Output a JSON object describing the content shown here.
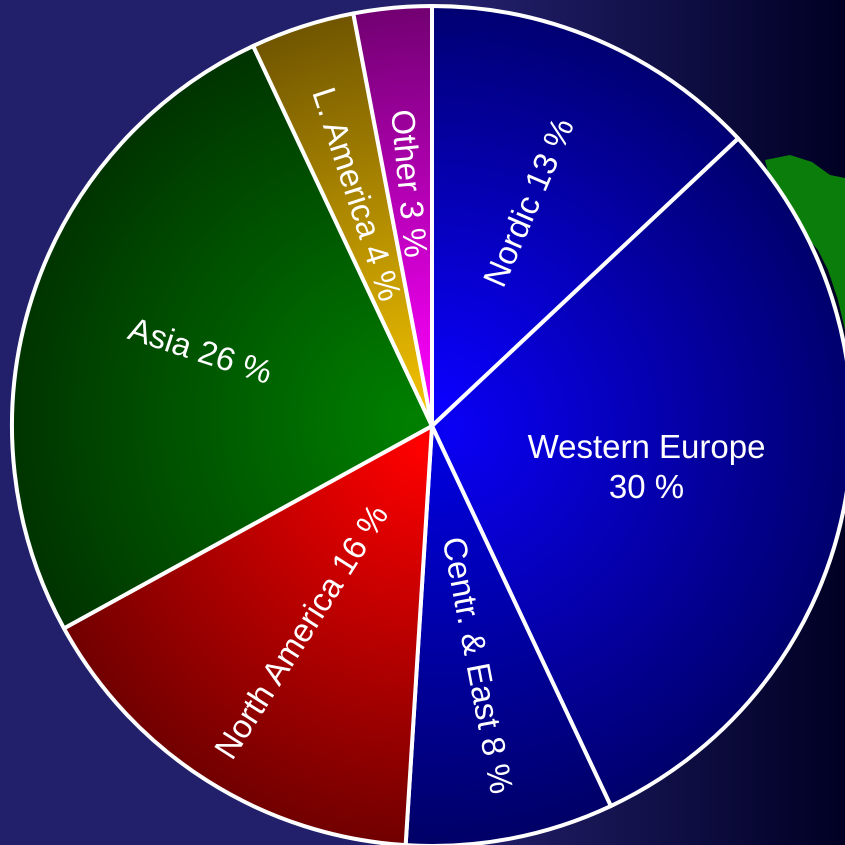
{
  "colors": {
    "background_left": "#23206b",
    "background_right": "#000024",
    "map_green": "#0a7d0a",
    "slice_border": "#ffffff"
  },
  "chart_data": {
    "type": "pie",
    "title": "",
    "slices": [
      {
        "name": "Nordic",
        "label_lines": [
          "Nordic 13 %"
        ],
        "value": 13,
        "color_light": "#0a00ff",
        "color_dark": "#00006a"
      },
      {
        "name": "Western Europe",
        "label_lines": [
          "Western Europe",
          "30 %"
        ],
        "value": 30,
        "color_light": "#0a00f5",
        "color_dark": "#000066"
      },
      {
        "name": "Centr. & East",
        "label_lines": [
          "Centr. & East  8 %"
        ],
        "value": 8,
        "color_light": "#0000e0",
        "color_dark": "#000060"
      },
      {
        "name": "North America",
        "label_lines": [
          "North America 16 %"
        ],
        "value": 16,
        "color_light": "#ff0000",
        "color_dark": "#6a0000"
      },
      {
        "name": "Asia",
        "label_lines": [
          "Asia 26 %"
        ],
        "value": 26,
        "color_light": "#008000",
        "color_dark": "#003000"
      },
      {
        "name": "L. America",
        "label_lines": [
          "L. America 4 %"
        ],
        "value": 4,
        "color_light": "#f0c000",
        "color_dark": "#6a5000"
      },
      {
        "name": "Other",
        "label_lines": [
          "Other 3 %"
        ],
        "value": 3,
        "color_light": "#ff00ff",
        "color_dark": "#6a006a"
      }
    ]
  }
}
